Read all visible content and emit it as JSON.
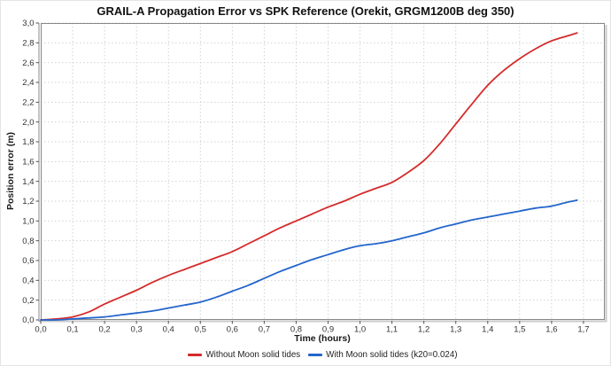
{
  "chart_data": {
    "type": "line",
    "title": "GRAIL-A Propagation Error vs SPK Reference (Orekit, GRGM1200B deg 350)",
    "xlabel": "Time (hours)",
    "ylabel": "Position error (m)",
    "x_range": [
      0,
      1.7667
    ],
    "y_range": [
      0,
      3.0
    ],
    "grid": "dotted",
    "legend_position": "bottom-center",
    "x_ticks": {
      "values": [
        0.0,
        0.1,
        0.2,
        0.3,
        0.4,
        0.5,
        0.6,
        0.7,
        0.8,
        0.9,
        1.0,
        1.1,
        1.2,
        1.3,
        1.4,
        1.5,
        1.6,
        1.7
      ],
      "labels": [
        "0,0",
        "0,1",
        "0,2",
        "0,3",
        "0,4",
        "0,5",
        "0,6",
        "0,7",
        "0,8",
        "0,9",
        "1,0",
        "1,1",
        "1,2",
        "1,3",
        "1,4",
        "1,5",
        "1,6",
        "1,7"
      ]
    },
    "y_ticks": {
      "values": [
        0.0,
        0.2,
        0.4,
        0.6,
        0.8,
        1.0,
        1.2,
        1.4,
        1.6,
        1.8,
        2.0,
        2.2,
        2.4,
        2.6,
        2.8,
        3.0
      ],
      "labels": [
        "0,0",
        "0,2",
        "0,4",
        "0,6",
        "0,8",
        "1,0",
        "1,2",
        "1,4",
        "1,6",
        "1,8",
        "2,0",
        "2,2",
        "2,4",
        "2,6",
        "2,8",
        "3,0"
      ]
    },
    "x": [
      0.0,
      0.05,
      0.1,
      0.15,
      0.2,
      0.25,
      0.3,
      0.35,
      0.4,
      0.45,
      0.5,
      0.55,
      0.6,
      0.65,
      0.7,
      0.75,
      0.8,
      0.85,
      0.9,
      0.95,
      1.0,
      1.05,
      1.1,
      1.15,
      1.2,
      1.25,
      1.3,
      1.35,
      1.4,
      1.45,
      1.5,
      1.55,
      1.6,
      1.65,
      1.68
    ],
    "series": [
      {
        "name": "Without Moon solid tides",
        "color": "#d52b2b",
        "values": [
          0.0,
          0.01,
          0.03,
          0.08,
          0.16,
          0.23,
          0.3,
          0.38,
          0.45,
          0.51,
          0.57,
          0.63,
          0.69,
          0.77,
          0.85,
          0.93,
          1.0,
          1.07,
          1.14,
          1.2,
          1.27,
          1.33,
          1.39,
          1.49,
          1.61,
          1.78,
          1.98,
          2.18,
          2.37,
          2.52,
          2.64,
          2.74,
          2.82,
          2.87,
          2.9
        ]
      },
      {
        "name": "With Moon solid tides (k20=0.024)",
        "color": "#2365cc",
        "values": [
          0.0,
          0.0,
          0.01,
          0.02,
          0.03,
          0.05,
          0.07,
          0.09,
          0.12,
          0.15,
          0.18,
          0.23,
          0.29,
          0.35,
          0.42,
          0.49,
          0.55,
          0.61,
          0.66,
          0.71,
          0.75,
          0.77,
          0.8,
          0.84,
          0.88,
          0.93,
          0.97,
          1.01,
          1.04,
          1.07,
          1.1,
          1.13,
          1.15,
          1.19,
          1.21
        ]
      }
    ],
    "colors": {
      "grid": "#d2d2d2",
      "plot_border": "#878787",
      "axis_shadow": "#c9c9c9",
      "tick": "#555555",
      "tick_label": "#333333"
    }
  }
}
